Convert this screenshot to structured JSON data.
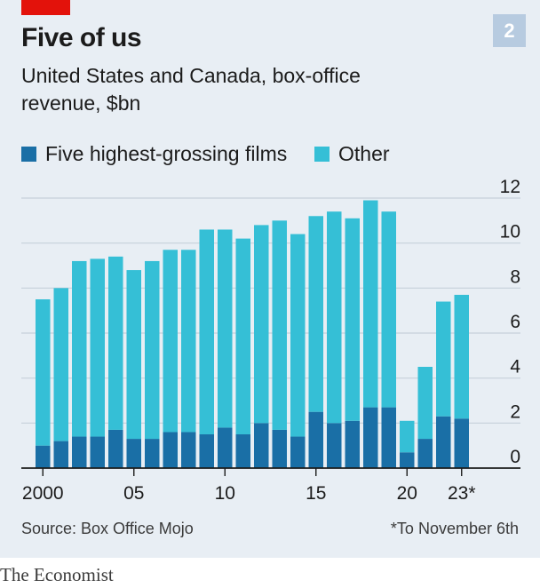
{
  "header": {
    "title": "Five of us",
    "subtitle": "United States and Canada, box-office revenue, $bn",
    "chart_number": "2",
    "accent_color": "#e3120b"
  },
  "legend": {
    "five_label": "Five highest-grossing films",
    "other_label": "Other"
  },
  "footer": {
    "source": "Source: Box Office Mojo",
    "footnote": "*To November 6th",
    "brand": "The Economist"
  },
  "chart_data": {
    "type": "bar",
    "stacked": true,
    "title": "Five of us",
    "subtitle": "United States and Canada, box-office revenue, $bn",
    "categories": [
      "2000",
      "2001",
      "2002",
      "2003",
      "2004",
      "2005",
      "2006",
      "2007",
      "2008",
      "2009",
      "2010",
      "2011",
      "2012",
      "2013",
      "2014",
      "2015",
      "2016",
      "2017",
      "2018",
      "2019",
      "2020",
      "2021",
      "2022",
      "2023*"
    ],
    "x_tick_labels": [
      {
        "category": "2000",
        "label": "2000"
      },
      {
        "category": "2005",
        "label": "05"
      },
      {
        "category": "2010",
        "label": "10"
      },
      {
        "category": "2015",
        "label": "15"
      },
      {
        "category": "2020",
        "label": "20"
      },
      {
        "category": "2023*",
        "label": "23*"
      }
    ],
    "series": [
      {
        "name": "Five highest-grossing films",
        "color": "#1a6fa6",
        "values": [
          1.0,
          1.2,
          1.4,
          1.4,
          1.7,
          1.3,
          1.3,
          1.6,
          1.6,
          1.5,
          1.8,
          1.5,
          2.0,
          1.7,
          1.4,
          2.5,
          2.0,
          2.1,
          2.7,
          2.7,
          0.7,
          1.3,
          2.3,
          2.2
        ]
      },
      {
        "name": "Other",
        "color": "#35bfd6",
        "values": [
          6.5,
          6.8,
          7.8,
          7.9,
          7.7,
          7.5,
          7.9,
          8.1,
          8.1,
          9.1,
          8.8,
          8.7,
          8.8,
          9.3,
          9.0,
          8.7,
          9.4,
          9.0,
          9.2,
          8.7,
          1.4,
          3.2,
          5.1,
          5.5
        ]
      }
    ],
    "ylim": [
      0,
      12
    ],
    "yticks": [
      0,
      2,
      4,
      6,
      8,
      10,
      12
    ],
    "grid": true,
    "y_axis_side": "right",
    "legend_position": "top-left"
  }
}
